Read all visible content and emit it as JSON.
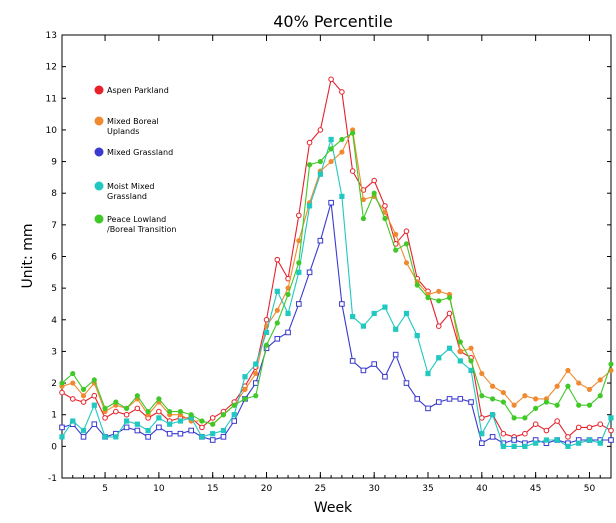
{
  "chart_data": {
    "type": "line",
    "title": "40% Percentile",
    "xlabel": "Week",
    "ylabel": "Unit: mm",
    "xlim": [
      1,
      52
    ],
    "ylim": [
      -1,
      13
    ],
    "xticks": [
      5,
      10,
      15,
      20,
      25,
      30,
      35,
      40,
      45,
      50
    ],
    "yticks": [
      -1,
      0,
      1,
      2,
      3,
      4,
      5,
      6,
      7,
      8,
      9,
      10,
      11,
      12,
      13
    ],
    "grid": false,
    "legend_position": "top-left",
    "series": [
      {
        "name": "Aspen Parkland",
        "color": "#e8202a",
        "marker": "open-circle",
        "values": [
          1.7,
          1.5,
          1.4,
          1.6,
          0.9,
          1.1,
          1.0,
          1.2,
          0.9,
          1.1,
          0.8,
          0.9,
          0.9,
          0.6,
          0.9,
          1.1,
          1.4,
          1.9,
          2.5,
          4.0,
          5.9,
          5.3,
          7.3,
          9.6,
          10.0,
          11.6,
          11.2,
          8.7,
          8.1,
          8.4,
          7.6,
          6.4,
          6.8,
          5.3,
          4.9,
          3.8,
          4.2,
          3.0,
          2.8,
          0.9,
          1.0,
          0.4,
          0.3,
          0.4,
          0.7,
          0.5,
          0.8,
          0.3,
          0.6,
          0.6,
          0.7,
          0.5
        ]
      },
      {
        "name": "Mixed Boreal Uplands",
        "color": "#f08a30",
        "marker": "filled-circle",
        "values": [
          1.9,
          2.0,
          1.6,
          2.0,
          1.1,
          1.3,
          1.2,
          1.5,
          1.0,
          1.4,
          1.0,
          1.0,
          0.8,
          0.8,
          0.7,
          1.0,
          1.3,
          1.8,
          2.3,
          3.8,
          4.3,
          5.0,
          6.5,
          7.7,
          8.7,
          9.0,
          9.3,
          10.0,
          7.8,
          7.9,
          7.4,
          6.7,
          5.8,
          5.2,
          4.8,
          4.9,
          4.8,
          3.0,
          3.1,
          2.3,
          1.9,
          1.7,
          1.3,
          1.6,
          1.5,
          1.5,
          1.9,
          2.4,
          2.0,
          1.8,
          2.1,
          2.4
        ]
      },
      {
        "name": "Mixed Grassland",
        "color": "#3a3ad0",
        "marker": "open-square",
        "values": [
          0.6,
          0.7,
          0.3,
          0.7,
          0.3,
          0.4,
          0.6,
          0.5,
          0.3,
          0.6,
          0.4,
          0.4,
          0.5,
          0.3,
          0.2,
          0.3,
          0.8,
          1.5,
          2.0,
          3.1,
          3.4,
          3.6,
          4.5,
          5.5,
          6.5,
          7.7,
          4.5,
          2.7,
          2.4,
          2.6,
          2.2,
          2.9,
          2.0,
          1.5,
          1.2,
          1.4,
          1.5,
          1.5,
          1.4,
          0.1,
          0.3,
          0.1,
          0.2,
          0.1,
          0.2,
          0.1,
          0.2,
          0.1,
          0.2,
          0.2,
          0.2,
          0.2
        ]
      },
      {
        "name": "Moist Mixed Grassland",
        "color": "#20c8c0",
        "marker": "filled-square",
        "values": [
          0.3,
          0.8,
          0.5,
          1.3,
          0.3,
          0.3,
          0.8,
          0.7,
          0.5,
          0.9,
          0.7,
          0.8,
          0.9,
          0.3,
          0.4,
          0.5,
          1.0,
          2.2,
          2.6,
          3.6,
          4.9,
          4.2,
          5.5,
          7.6,
          8.6,
          9.7,
          7.9,
          4.1,
          3.8,
          4.2,
          4.4,
          3.7,
          4.2,
          3.5,
          2.3,
          2.8,
          3.1,
          2.7,
          2.4,
          0.4,
          1.0,
          0.0,
          0.0,
          0.0,
          0.1,
          0.2,
          0.2,
          0.0,
          0.1,
          0.2,
          0.1,
          0.9
        ]
      },
      {
        "name": "Peace Lowland /Boreal Transition",
        "color": "#40c828",
        "marker": "filled-circle",
        "values": [
          2.0,
          2.3,
          1.8,
          2.1,
          1.2,
          1.4,
          1.2,
          1.6,
          1.1,
          1.5,
          1.1,
          1.1,
          1.0,
          0.8,
          0.7,
          1.0,
          1.3,
          1.5,
          1.6,
          3.2,
          3.9,
          4.8,
          5.8,
          8.9,
          9.0,
          9.4,
          9.7,
          9.9,
          7.2,
          8.0,
          7.2,
          6.2,
          6.4,
          5.1,
          4.7,
          4.6,
          4.7,
          3.3,
          2.7,
          1.6,
          1.5,
          1.4,
          0.9,
          0.9,
          1.2,
          1.4,
          1.3,
          1.9,
          1.3,
          1.3,
          1.6,
          2.6
        ]
      }
    ]
  }
}
